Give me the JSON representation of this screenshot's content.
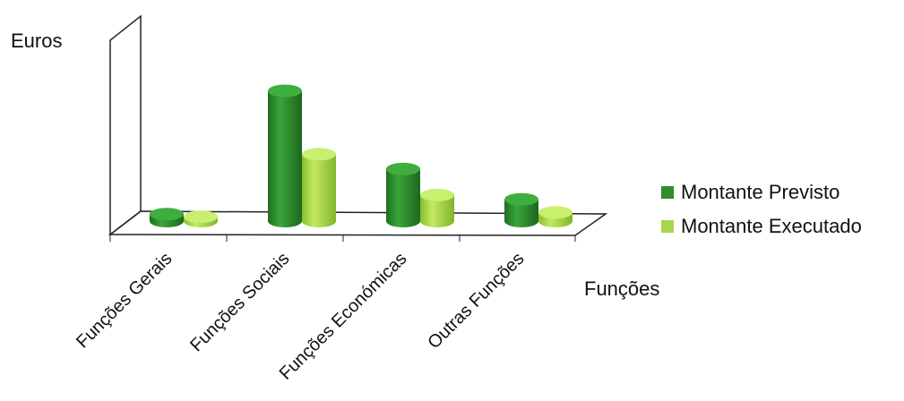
{
  "chart_data": {
    "type": "bar",
    "style": "3d-cylinder",
    "ylabel": "Euros",
    "xlabel": "Funções",
    "categories": [
      "Funções Gerais",
      "Funções Sociais",
      "Funções Económicas",
      "Outras Funções"
    ],
    "series": [
      {
        "name": "Montante Previsto",
        "color": "#2e8b2e",
        "values": [
          8,
          150,
          60,
          25
        ]
      },
      {
        "name": "Montante Executado",
        "color": "#a6d64a",
        "values": [
          5,
          77,
          30,
          10
        ]
      }
    ],
    "ylim": [
      0,
      190
    ],
    "grid": false,
    "legend_position": "right"
  }
}
